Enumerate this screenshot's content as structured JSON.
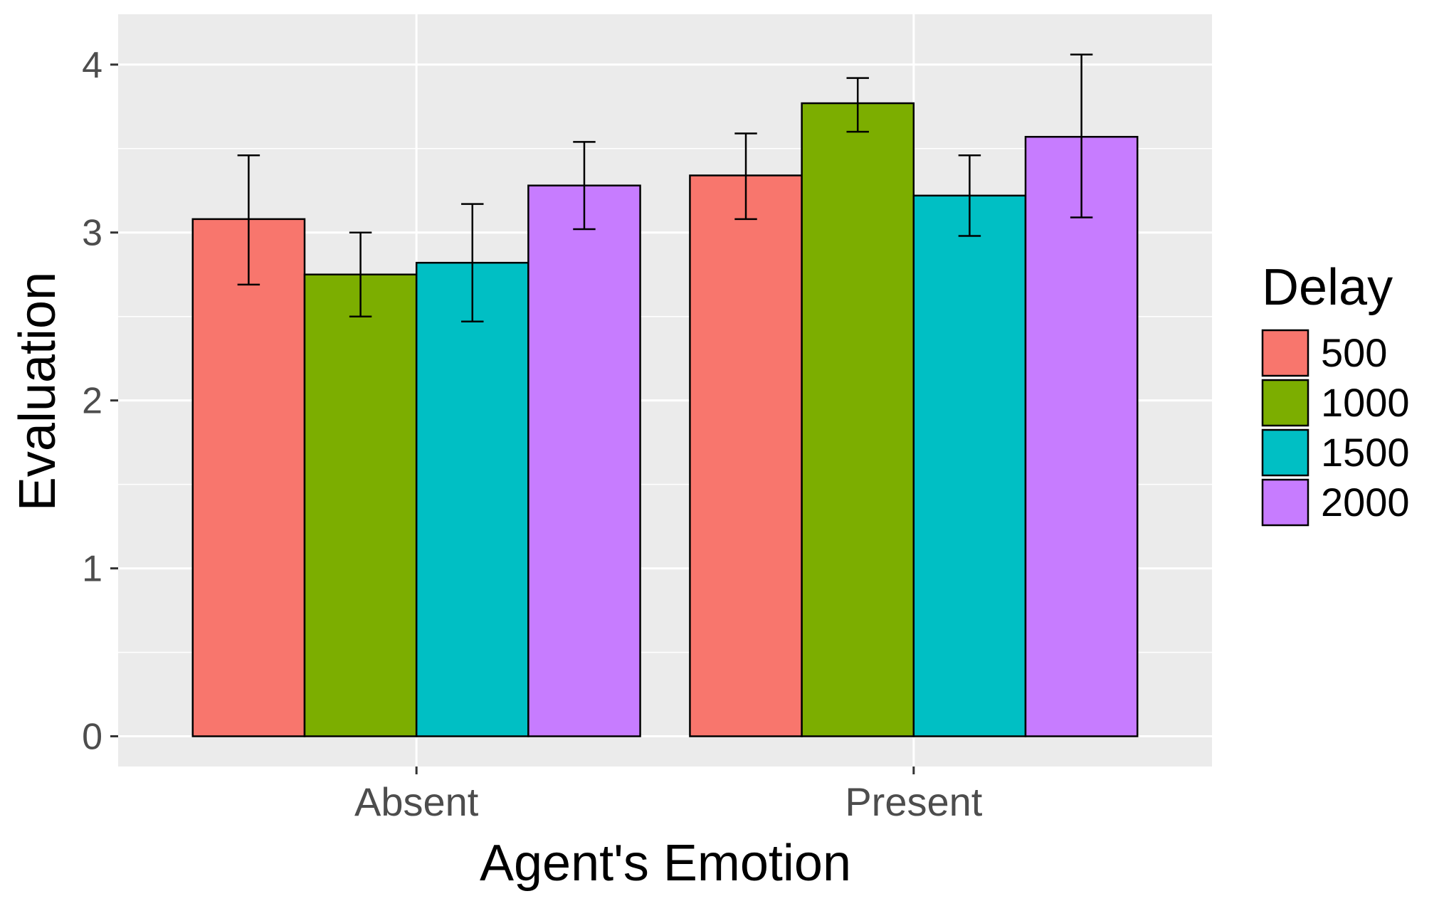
{
  "chart_data": {
    "type": "bar",
    "xlabel": "Agent's Emotion",
    "ylabel": "Evaluation",
    "categories": [
      "Absent",
      "Present"
    ],
    "ylim": [
      -0.18,
      4.3
    ],
    "yticks": [
      0,
      1,
      2,
      3,
      4
    ],
    "ytick_labels": [
      "0",
      "1",
      "2",
      "3",
      "4"
    ],
    "grid": true,
    "legend": {
      "title": "Delay",
      "position": "right"
    },
    "series": [
      {
        "name": "500",
        "color": "#F8766D",
        "values": [
          3.08,
          3.34
        ],
        "error_low": [
          2.69,
          3.08
        ],
        "error_high": [
          3.46,
          3.59
        ]
      },
      {
        "name": "1000",
        "color": "#7CAE00",
        "values": [
          2.75,
          3.77
        ],
        "error_low": [
          2.5,
          3.6
        ],
        "error_high": [
          3.0,
          3.92
        ]
      },
      {
        "name": "1500",
        "color": "#00BFC4",
        "values": [
          2.82,
          3.22
        ],
        "error_low": [
          2.47,
          2.98
        ],
        "error_high": [
          3.17,
          3.46
        ]
      },
      {
        "name": "2000",
        "color": "#C77CFF",
        "values": [
          3.28,
          3.57
        ],
        "error_low": [
          3.02,
          3.09
        ],
        "error_high": [
          3.54,
          4.06
        ]
      }
    ],
    "panel_color": "#EBEBEB",
    "gridline_color": "#FFFFFF",
    "tick_label_color": "#4D4D4D",
    "title_color": "#000000"
  }
}
